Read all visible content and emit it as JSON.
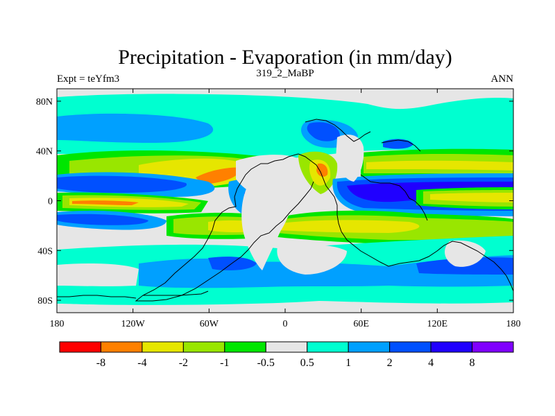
{
  "chart_data": {
    "type": "heatmap",
    "title": "Precipitation - Evaporation (in mm/day)",
    "subtitle_left": "Expt = teYfm3",
    "subtitle_center": "319_2_MaBP",
    "subtitle_right": "ANN",
    "xlim": [
      -180,
      180
    ],
    "ylim": [
      -90,
      90
    ],
    "x_ticks": [
      {
        "value": -180,
        "label": "180"
      },
      {
        "value": -120,
        "label": "120W"
      },
      {
        "value": -60,
        "label": "60W"
      },
      {
        "value": 0,
        "label": "0"
      },
      {
        "value": 60,
        "label": "60E"
      },
      {
        "value": 120,
        "label": "120E"
      },
      {
        "value": 180,
        "label": "180"
      }
    ],
    "y_ticks": [
      {
        "value": 80,
        "label": "80N"
      },
      {
        "value": 40,
        "label": "40N"
      },
      {
        "value": 0,
        "label": "0"
      },
      {
        "value": -40,
        "label": "40S"
      },
      {
        "value": -80,
        "label": "80S"
      }
    ],
    "colorbar": {
      "colors": [
        "#ff0000",
        "#ff8000",
        "#e6e600",
        "#99e600",
        "#00e600",
        "#e6e6e6",
        "#00ffd0",
        "#00a0ff",
        "#0050ff",
        "#2000ff",
        "#8000ff"
      ],
      "labels": [
        "-8",
        "-4",
        "-2",
        "-1",
        "-0.5",
        "0.5",
        "1",
        "2",
        "4",
        "8"
      ]
    }
  }
}
